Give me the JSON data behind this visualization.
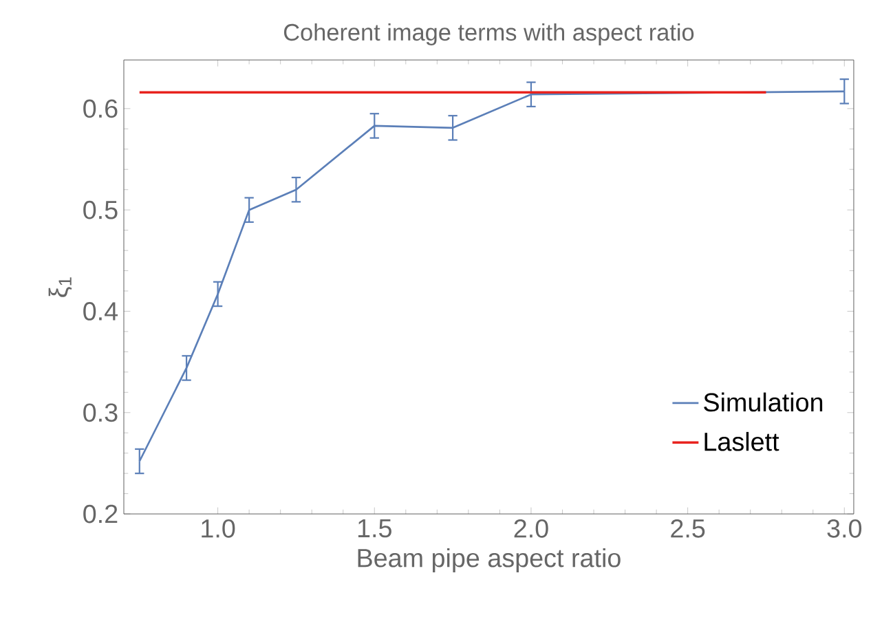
{
  "chart_data": {
    "type": "line",
    "title": "Coherent image terms with aspect ratio",
    "xlabel": "Beam pipe aspect ratio",
    "ylabel": "ξ$_{1}$",
    "xlim": [
      0.7,
      3.03
    ],
    "ylim": [
      0.2,
      0.648
    ],
    "xticks": [
      {
        "value": 1.0,
        "label": "1.0"
      },
      1.5,
      {
        "value": 2.0,
        "label": "2.0"
      },
      2.5,
      {
        "value": 3.0,
        "label": "3.0"
      }
    ],
    "yticks": [
      0.2,
      0.3,
      0.4,
      0.5,
      0.6
    ],
    "series": [
      {
        "name": "Simulation",
        "color": "#5b7fb8",
        "x": [
          0.75,
          0.9,
          1.0,
          1.1,
          1.25,
          1.5,
          1.75,
          2.0,
          3.0
        ],
        "values": [
          0.252,
          0.344,
          0.417,
          0.5,
          0.52,
          0.583,
          0.581,
          0.614,
          0.617
        ],
        "errors": [
          0.012,
          0.012,
          0.012,
          0.012,
          0.012,
          0.012,
          0.012,
          0.012,
          0.012
        ]
      },
      {
        "name": "Laslett",
        "color": "#e8231e",
        "x": [
          0.75,
          2.75
        ],
        "values": [
          0.616,
          0.616
        ]
      }
    ],
    "legend": "bottom right",
    "marker": "none"
  }
}
